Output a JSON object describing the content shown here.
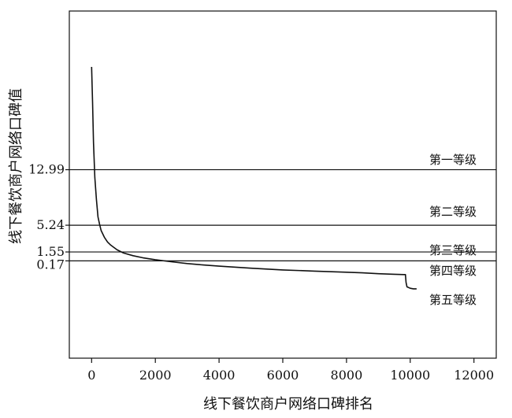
{
  "chart_data": {
    "type": "line",
    "title": "",
    "xlabel": "线下餐饮商户网络口碑排名",
    "ylabel": "线下餐饮商户网络口碑值",
    "xlim": [
      -700,
      12700
    ],
    "x_ticks": [
      0,
      2000,
      4000,
      6000,
      8000,
      10000,
      12000
    ],
    "grid": false,
    "legend": "none",
    "threshold_lines": [
      {
        "value": 12.99,
        "label": "12.99"
      },
      {
        "value": 5.24,
        "label": "5.24"
      },
      {
        "value": 1.55,
        "label": "1.55"
      },
      {
        "value": 0.17,
        "label": "0.17"
      }
    ],
    "bands": [
      {
        "label": "第一等级",
        "between": [
          "top",
          12.99
        ]
      },
      {
        "label": "第二等级",
        "between": [
          12.99,
          5.24
        ]
      },
      {
        "label": "第三等级",
        "between": [
          5.24,
          1.55
        ]
      },
      {
        "label": "第四等级",
        "between": [
          1.55,
          0.17
        ]
      },
      {
        "label": "第五等级",
        "between": [
          0.17,
          "bottom"
        ]
      }
    ],
    "y_scale": [
      {
        "value": 12.99,
        "frac": 0.3529
      },
      {
        "value": 5.24,
        "frac": 0.5435
      },
      {
        "value": 1.55,
        "frac": 0.6353
      },
      {
        "value": 0.17,
        "frac": 0.6659
      }
    ],
    "series": [
      {
        "x": [
          0,
          30,
          60,
          100,
          150,
          200,
          250,
          300,
          400,
          500,
          600,
          800,
          1000,
          1300,
          1600,
          2000,
          2500,
          3000,
          3500,
          4000,
          5000,
          6000,
          7000,
          8000,
          8500,
          9000,
          9500,
          9800,
          9850,
          9870,
          9900,
          10000,
          10100,
          10200
        ],
        "y_frac": [
          0.0,
          0.12,
          0.26,
          0.38,
          0.455,
          0.515,
          0.54,
          0.562,
          0.585,
          0.601,
          0.612,
          0.628,
          0.639,
          0.648,
          0.655,
          0.662,
          0.669,
          0.675,
          0.68,
          0.684,
          0.691,
          0.697,
          0.701,
          0.705,
          0.707,
          0.71,
          0.712,
          0.713,
          0.713,
          0.74,
          0.755,
          0.76,
          0.762,
          0.762
        ]
      }
    ]
  }
}
